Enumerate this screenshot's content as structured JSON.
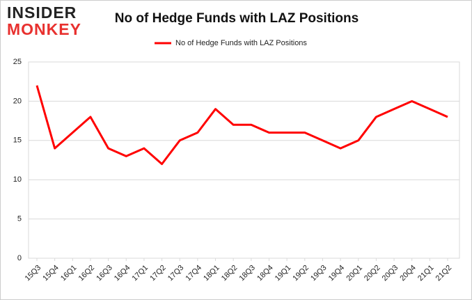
{
  "logo": {
    "line1": "INSIDER",
    "line2": "MONKEY"
  },
  "chart_data": {
    "type": "line",
    "title": "No of Hedge Funds with LAZ Positions",
    "categories": [
      "15Q3",
      "15Q4",
      "16Q1",
      "16Q2",
      "16Q3",
      "16Q4",
      "17Q1",
      "17Q2",
      "17Q3",
      "17Q4",
      "18Q1",
      "18Q2",
      "18Q3",
      "18Q4",
      "19Q1",
      "19Q2",
      "19Q3",
      "19Q4",
      "20Q1",
      "20Q2",
      "20Q3",
      "20Q4",
      "21Q1",
      "21Q2"
    ],
    "series": [
      {
        "name": "No of Hedge Funds with LAZ Positions",
        "color": "#ff0000",
        "values": [
          22,
          14,
          16,
          18,
          14,
          13,
          14,
          12,
          15,
          16,
          19,
          17,
          17,
          16,
          16,
          16,
          15,
          14,
          15,
          18,
          19,
          20,
          19,
          18
        ]
      }
    ],
    "ylim": [
      0,
      25
    ],
    "yticks": [
      0,
      5,
      10,
      15,
      20,
      25
    ],
    "grid": true,
    "legend": "top"
  }
}
